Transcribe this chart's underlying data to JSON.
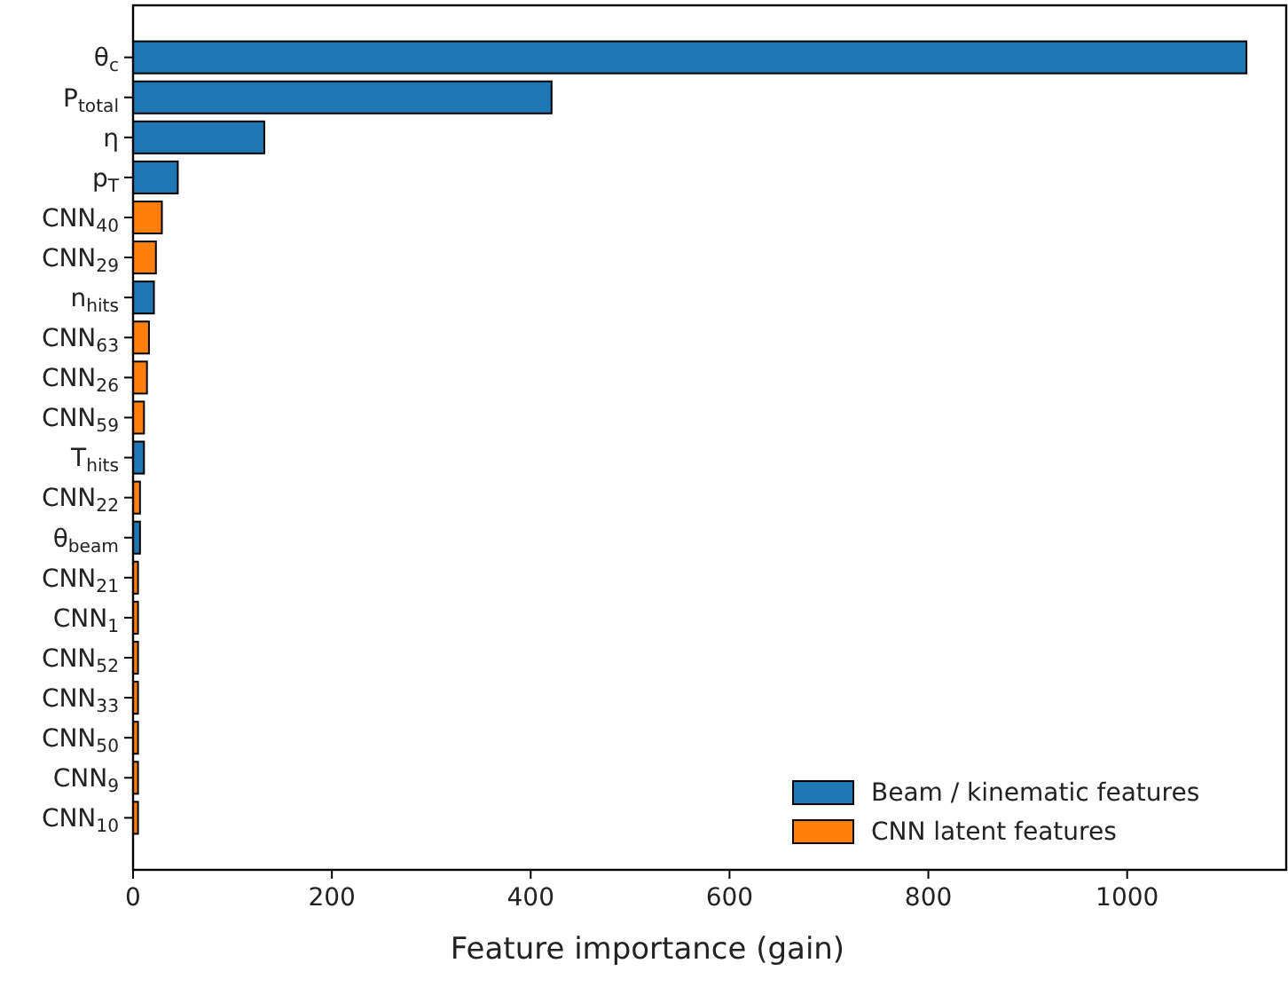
{
  "chart_data": {
    "type": "bar",
    "orientation": "horizontal",
    "xlabel": "Feature importance (gain)",
    "categories": [
      "θ$_{c}$",
      "P$_{total}$",
      "η",
      "p$_{T}$",
      "CNN$_{40}$",
      "CNN$_{29}$",
      "n$_{hits}$",
      "CNN$_{63}$",
      "CNN$_{26}$",
      "CNN$_{59}$",
      "T$_{hits}$",
      "CNN$_{22}$",
      "θ$_{beam}$",
      "CNN$_{21}$",
      "CNN$_{1}$",
      "CNN$_{52}$",
      "CNN$_{33}$",
      "CNN$_{50}$",
      "CNN$_{9}$",
      "CNN$_{10}$"
    ],
    "series": [
      {
        "name": "Beam / kinematic features",
        "color": "#1f77b4",
        "values": [
          1120,
          421,
          132,
          45,
          null,
          null,
          21,
          null,
          null,
          null,
          11,
          null,
          7,
          null,
          null,
          null,
          null,
          null,
          null,
          null
        ]
      },
      {
        "name": "CNN latent features",
        "color": "#ff7f0e",
        "values": [
          null,
          null,
          null,
          null,
          29,
          23,
          null,
          16,
          14,
          11,
          null,
          7,
          null,
          5,
          5,
          5,
          5,
          5,
          5,
          5
        ]
      }
    ],
    "xlim": [
      0,
      1160
    ],
    "xticks": [
      0,
      200,
      400,
      600,
      800,
      1000
    ],
    "grid": false,
    "legend": "bottom right"
  }
}
